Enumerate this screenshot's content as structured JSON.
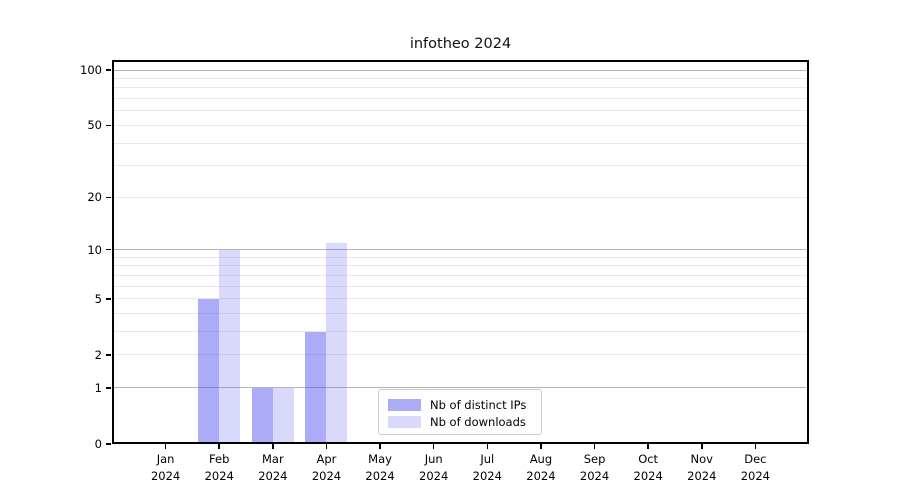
{
  "title": "infotheo 2024",
  "chart_data": {
    "type": "bar",
    "title": "infotheo 2024",
    "categories": [
      "Jan 2024",
      "Feb 2024",
      "Mar 2024",
      "Apr 2024",
      "May 2024",
      "Jun 2024",
      "Jul 2024",
      "Aug 2024",
      "Sep 2024",
      "Oct 2024",
      "Nov 2024",
      "Dec 2024"
    ],
    "series": [
      {
        "name": "Nb of distinct IPs",
        "color": "rgba(80,80,240,0.48)",
        "values": [
          0,
          5,
          1,
          3,
          0,
          0,
          0,
          0,
          0,
          0,
          0,
          0
        ]
      },
      {
        "name": "Nb of downloads",
        "color": "rgba(80,80,240,0.22)",
        "values": [
          0,
          10,
          1,
          11,
          0,
          0,
          0,
          0,
          0,
          0,
          0,
          0
        ]
      }
    ],
    "xlabel": "",
    "ylabel": "",
    "y_axis": {
      "scale": "log1p",
      "range": [
        0,
        100
      ],
      "tick_values": [
        0,
        1,
        2,
        5,
        10,
        20,
        50,
        100
      ],
      "tick_labels": [
        "0",
        "1",
        "2",
        "5",
        "10",
        "20",
        "50",
        "100"
      ],
      "gridlines_major": [
        1,
        10,
        100
      ],
      "gridlines_minor": [
        2,
        3,
        4,
        5,
        6,
        7,
        8,
        9,
        20,
        30,
        40,
        50,
        60,
        70,
        80,
        90
      ]
    },
    "grid": "horizontal",
    "legend_position": "lower center",
    "colors": {
      "bar_ips_rendered": "#aaaaf6",
      "bar_downloads_rendered": "#d9d9fb",
      "grid_major": "#b5b5b5",
      "grid_minor": "#e8e8e8",
      "axis": "#000000"
    }
  }
}
